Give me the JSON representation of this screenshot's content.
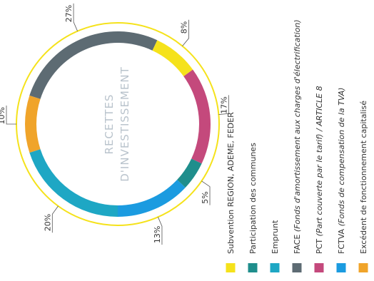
{
  "chart_data": {
    "type": "donut",
    "title": "",
    "center_label": [
      "RECETTES",
      "D'INVESTISSEMENT"
    ],
    "series": [
      {
        "name": "Subvention REGION, ADEME, FEDER",
        "value": 8,
        "label": "8%",
        "color": "#f5e21b"
      },
      {
        "name": "Participation des communes",
        "value": 5,
        "label": "5%",
        "color": "#1f8e8c"
      },
      {
        "name": "Emprunt",
        "value": 20,
        "label": "20%",
        "color": "#1ea7c4"
      },
      {
        "name": "FACE",
        "name_note": "(Fonds d'amortissement aux charges d'électrification)",
        "value": 27,
        "label": "27%",
        "color": "#5d6b73"
      },
      {
        "name": "PCT",
        "name_note": "(Part couverte par le tarif) / ARTICLE 8",
        "value": 17,
        "label": "17%",
        "color": "#c4497c"
      },
      {
        "name": "FCTVA",
        "name_note": "(Fonds de compensation de la TVA)",
        "value": 13,
        "label": "13%",
        "color": "#1b9be0"
      },
      {
        "name": "Excédent de fonctionnement capitalisé",
        "value": 10,
        "label": "10%",
        "color": "#f0a42a"
      }
    ],
    "ring_order": [
      "Excédent de fonctionnement capitalisé",
      "FACE",
      "Subvention REGION, ADEME, FEDER",
      "PCT",
      "Participation des communes",
      "FCTVA",
      "Emprunt"
    ],
    "outer_ring_color": "#f5e21b",
    "legend_position": "bottom"
  }
}
